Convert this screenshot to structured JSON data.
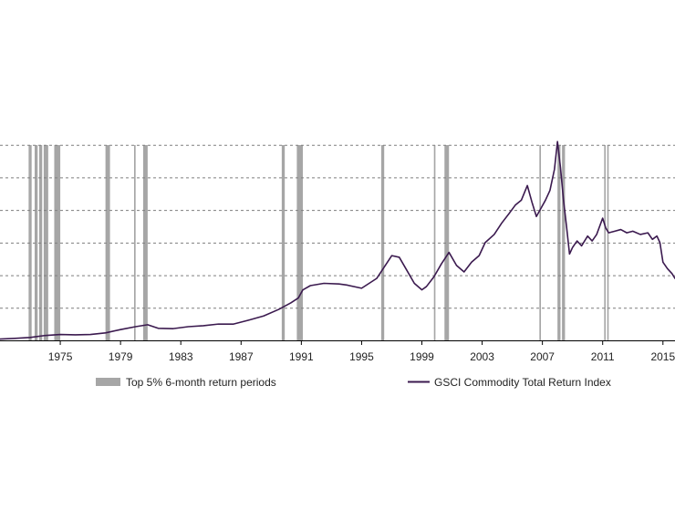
{
  "chart_data": {
    "type": "line",
    "title": "",
    "xlabel": "",
    "ylabel": "",
    "xlim": [
      1971.0,
      2015.8
    ],
    "ylim": [
      0,
      7
    ],
    "y_tick_labels_shown": false,
    "grid": {
      "horizontal": true,
      "style": "dashed",
      "lines_at": [
        1,
        2,
        3,
        4,
        5,
        6
      ]
    },
    "x_ticks": [
      1975,
      1979,
      1983,
      1987,
      1991,
      1995,
      1999,
      2003,
      2007,
      2011,
      2015
    ],
    "x_tick_labels": [
      "1975",
      "1979",
      "1983",
      "1987",
      "1991",
      "1995",
      "1999",
      "2003",
      "2007",
      "2011",
      "2015"
    ],
    "legend": {
      "placement": "bottom",
      "items": [
        {
          "label": "Top 5% 6-month return periods",
          "marker": "bar",
          "color": "#a6a6a6"
        },
        {
          "label": "GSCI Commodity Total Return Index",
          "marker": "line",
          "color": "#3b1a4f"
        }
      ]
    },
    "shaded_periods": {
      "name": "Top 5% 6-month return periods",
      "color": "#a6a6a6",
      "periods": [
        [
          1972.9,
          1973.1
        ],
        [
          1973.3,
          1973.5
        ],
        [
          1973.6,
          1973.8
        ],
        [
          1973.9,
          1974.2
        ],
        [
          1974.6,
          1975.0
        ],
        [
          1978.0,
          1978.3
        ],
        [
          1979.9,
          1980.0
        ],
        [
          1980.5,
          1980.8
        ],
        [
          1989.7,
          1989.9
        ],
        [
          1990.7,
          1991.1
        ],
        [
          1996.3,
          1996.5
        ],
        [
          1999.8,
          1999.9
        ],
        [
          2000.5,
          2000.8
        ],
        [
          2006.8,
          2006.9
        ],
        [
          2008.0,
          2008.2
        ],
        [
          2008.3,
          2008.5
        ],
        [
          2011.1,
          2011.2
        ],
        [
          2011.3,
          2011.4
        ]
      ]
    },
    "series": [
      {
        "name": "GSCI Commodity Total Return Index",
        "color": "#3b1a4f",
        "x": [
          1971.0,
          1972.0,
          1973.0,
          1974.0,
          1975.0,
          1976.0,
          1977.0,
          1978.0,
          1979.0,
          1980.0,
          1980.8,
          1981.5,
          1982.5,
          1983.5,
          1984.5,
          1985.5,
          1986.5,
          1987.5,
          1988.5,
          1989.5,
          1990.3,
          1990.8,
          1991.1,
          1991.6,
          1992.5,
          1993.5,
          1994.0,
          1995.0,
          1996.0,
          1996.5,
          1997.0,
          1997.5,
          1998.0,
          1998.5,
          1999.0,
          1999.3,
          1999.8,
          2000.3,
          2000.8,
          2001.3,
          2001.8,
          2002.3,
          2002.8,
          2003.2,
          2003.8,
          2004.3,
          2004.8,
          2005.2,
          2005.6,
          2006.0,
          2006.3,
          2006.6,
          2006.9,
          2007.2,
          2007.5,
          2007.8,
          2008.0,
          2008.2,
          2008.4,
          2008.6,
          2008.8,
          2009.0,
          2009.3,
          2009.6,
          2010.0,
          2010.3,
          2010.6,
          2011.0,
          2011.2,
          2011.4,
          2011.8,
          2012.2,
          2012.6,
          2013.0,
          2013.5,
          2014.0,
          2014.3,
          2014.6,
          2014.8,
          2015.0,
          2015.3,
          2015.6,
          2015.8
        ],
        "values": [
          0.04,
          0.06,
          0.09,
          0.15,
          0.18,
          0.17,
          0.18,
          0.23,
          0.33,
          0.42,
          0.48,
          0.37,
          0.36,
          0.42,
          0.45,
          0.5,
          0.5,
          0.62,
          0.75,
          0.95,
          1.15,
          1.3,
          1.55,
          1.68,
          1.75,
          1.73,
          1.7,
          1.6,
          1.9,
          2.25,
          2.6,
          2.55,
          2.15,
          1.75,
          1.55,
          1.65,
          1.95,
          2.35,
          2.7,
          2.3,
          2.1,
          2.4,
          2.6,
          3.0,
          3.25,
          3.6,
          3.9,
          4.15,
          4.3,
          4.75,
          4.25,
          3.8,
          4.05,
          4.3,
          4.6,
          5.25,
          6.1,
          5.3,
          4.3,
          3.5,
          2.65,
          2.85,
          3.05,
          2.9,
          3.2,
          3.05,
          3.25,
          3.75,
          3.45,
          3.3,
          3.35,
          3.4,
          3.3,
          3.35,
          3.25,
          3.3,
          3.1,
          3.2,
          3.0,
          2.4,
          2.2,
          2.05,
          1.9
        ]
      }
    ]
  }
}
